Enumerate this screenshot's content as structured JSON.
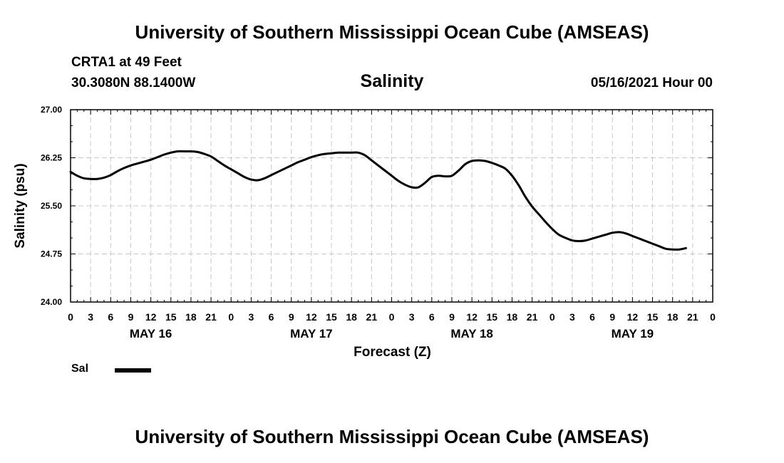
{
  "header": {
    "title": "University of Southern Mississippi Ocean Cube (AMSEAS)",
    "station": "CRTA1 at 49 Feet",
    "coords": "30.3080N  88.1400W",
    "parameter": "Salinity",
    "timestamp": "05/16/2021 Hour 00"
  },
  "footer": {
    "title": "University of Southern Mississippi Ocean Cube (AMSEAS)"
  },
  "legend": {
    "label": "Sal"
  },
  "chart_data": {
    "type": "line",
    "title": "Salinity",
    "xlabel": "Forecast (Z)",
    "ylabel": "Salinity (psu)",
    "ylim": [
      24.0,
      27.0
    ],
    "xlim": [
      0,
      96
    ],
    "grid": true,
    "yticks": [
      "24.00",
      "24.75",
      "25.50",
      "26.25",
      "27.00"
    ],
    "xtick_labels": [
      "0",
      "3",
      "6",
      "9",
      "12",
      "15",
      "18",
      "21",
      "0",
      "3",
      "6",
      "9",
      "12",
      "15",
      "18",
      "21",
      "0",
      "3",
      "6",
      "9",
      "12",
      "15",
      "18",
      "21",
      "0",
      "3",
      "6",
      "9",
      "12",
      "15",
      "18",
      "21",
      "0"
    ],
    "day_labels": [
      {
        "hour": 12,
        "label": "MAY 16"
      },
      {
        "hour": 36,
        "label": "MAY 17"
      },
      {
        "hour": 60,
        "label": "MAY 18"
      },
      {
        "hour": 84,
        "label": "MAY 19"
      }
    ],
    "series": [
      {
        "name": "Sal",
        "color": "#000000",
        "points": [
          [
            0,
            26.03
          ],
          [
            1,
            25.97
          ],
          [
            2,
            25.93
          ],
          [
            3,
            25.92
          ],
          [
            4,
            25.92
          ],
          [
            5,
            25.94
          ],
          [
            6,
            25.98
          ],
          [
            7,
            26.04
          ],
          [
            8,
            26.09
          ],
          [
            9,
            26.13
          ],
          [
            10,
            26.16
          ],
          [
            11,
            26.19
          ],
          [
            12,
            26.22
          ],
          [
            13,
            26.26
          ],
          [
            14,
            26.3
          ],
          [
            15,
            26.33
          ],
          [
            16,
            26.35
          ],
          [
            17,
            26.35
          ],
          [
            18,
            26.35
          ],
          [
            19,
            26.34
          ],
          [
            20,
            26.31
          ],
          [
            21,
            26.27
          ],
          [
            22,
            26.2
          ],
          [
            23,
            26.13
          ],
          [
            24,
            26.07
          ],
          [
            25,
            26.01
          ],
          [
            26,
            25.95
          ],
          [
            27,
            25.91
          ],
          [
            28,
            25.9
          ],
          [
            29,
            25.93
          ],
          [
            30,
            25.98
          ],
          [
            31,
            26.03
          ],
          [
            32,
            26.08
          ],
          [
            33,
            26.13
          ],
          [
            34,
            26.18
          ],
          [
            35,
            26.22
          ],
          [
            36,
            26.26
          ],
          [
            37,
            26.29
          ],
          [
            38,
            26.31
          ],
          [
            39,
            26.32
          ],
          [
            40,
            26.33
          ],
          [
            41,
            26.33
          ],
          [
            42,
            26.33
          ],
          [
            43,
            26.33
          ],
          [
            44,
            26.29
          ],
          [
            45,
            26.21
          ],
          [
            46,
            26.13
          ],
          [
            47,
            26.05
          ],
          [
            48,
            25.97
          ],
          [
            49,
            25.89
          ],
          [
            50,
            25.83
          ],
          [
            51,
            25.79
          ],
          [
            52,
            25.79
          ],
          [
            53,
            25.86
          ],
          [
            54,
            25.95
          ],
          [
            55,
            25.97
          ],
          [
            56,
            25.96
          ],
          [
            57,
            25.97
          ],
          [
            58,
            26.05
          ],
          [
            59,
            26.15
          ],
          [
            60,
            26.2
          ],
          [
            61,
            26.21
          ],
          [
            62,
            26.2
          ],
          [
            63,
            26.17
          ],
          [
            64,
            26.13
          ],
          [
            65,
            26.08
          ],
          [
            66,
            25.97
          ],
          [
            67,
            25.82
          ],
          [
            68,
            25.64
          ],
          [
            69,
            25.49
          ],
          [
            70,
            25.37
          ],
          [
            71,
            25.25
          ],
          [
            72,
            25.14
          ],
          [
            73,
            25.05
          ],
          [
            74,
            25.0
          ],
          [
            75,
            24.96
          ],
          [
            76,
            24.95
          ],
          [
            77,
            24.96
          ],
          [
            78,
            24.99
          ],
          [
            79,
            25.02
          ],
          [
            80,
            25.05
          ],
          [
            81,
            25.08
          ],
          [
            82,
            25.09
          ],
          [
            83,
            25.07
          ],
          [
            84,
            25.03
          ],
          [
            85,
            24.99
          ],
          [
            86,
            24.95
          ],
          [
            87,
            24.91
          ],
          [
            88,
            24.87
          ],
          [
            89,
            24.83
          ],
          [
            90,
            24.82
          ],
          [
            91,
            24.82
          ],
          [
            92,
            24.84
          ]
        ]
      }
    ]
  }
}
